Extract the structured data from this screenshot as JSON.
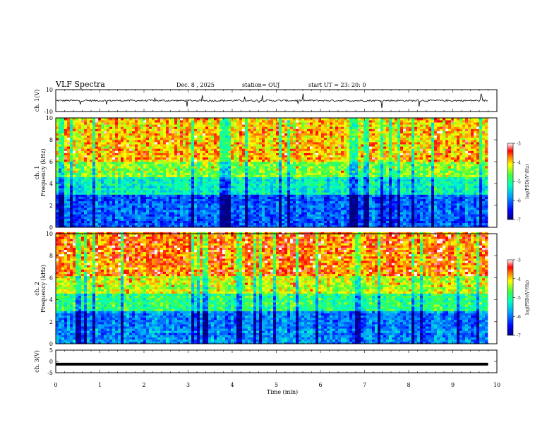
{
  "header": {
    "title": "VLF Spectra",
    "date": "Dec. 8 , 2025",
    "station": "station= OUJ",
    "start": "start UT = 23: 20: 0"
  },
  "chart_data": [
    {
      "type": "line",
      "panel": "ch1-waveform",
      "ylabel": "ch. 1(V)",
      "ylim": [
        -10,
        10
      ],
      "yticks": [
        "10",
        "-10"
      ],
      "baseline": 0,
      "note_values": "noisy waveform fluctuating around 0 V with occasional spikes"
    },
    {
      "type": "heatmap",
      "panel": "ch1-spectrogram",
      "ylabel_lines": [
        "ch. 1",
        "Frequency (kHz)"
      ],
      "ylim": [
        0,
        10
      ],
      "yticks": [
        "0",
        "2",
        "4",
        "6",
        "8",
        "10"
      ],
      "xlim": [
        0,
        10
      ],
      "colorbar": {
        "label": "log(PSD)(V²/Hz)",
        "range": [
          -7,
          -3
        ],
        "ticks": [
          "-3",
          "-4",
          "-5",
          "-6",
          "-7"
        ]
      }
    },
    {
      "type": "heatmap",
      "panel": "ch2-spectrogram",
      "ylabel_lines": [
        "ch. 2",
        "Frequency (kHz)"
      ],
      "ylim": [
        0,
        10
      ],
      "yticks": [
        "0",
        "2",
        "4",
        "6",
        "8",
        "10"
      ],
      "xlim": [
        0,
        10
      ],
      "colorbar": {
        "label": "log(PSD)(V²/Hz)",
        "range": [
          -7,
          -3
        ],
        "ticks": [
          "-3",
          "-4",
          "-5",
          "-6",
          "-7"
        ]
      }
    },
    {
      "type": "line",
      "panel": "ch3-waveform",
      "ylabel": "ch. 3(V)",
      "ylim": [
        -5,
        5
      ],
      "yticks": [
        "5",
        "0",
        "-5"
      ],
      "x": [
        0,
        9.8
      ],
      "y": [
        -1.2,
        -1.2
      ]
    }
  ],
  "xaxis": {
    "label": "Time (min)",
    "range": [
      0,
      10
    ],
    "ticks": [
      "0",
      "1",
      "2",
      "3",
      "4",
      "5",
      "6",
      "7",
      "8",
      "9",
      "10"
    ]
  },
  "colors": {
    "cmap": [
      "#00007f",
      "#0000ff",
      "#0080ff",
      "#00e5ff",
      "#40ff90",
      "#a0ff40",
      "#ffff00",
      "#ff8000",
      "#ff0000",
      "#ff9090",
      "#ffffff"
    ]
  }
}
